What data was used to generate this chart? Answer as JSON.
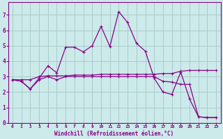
{
  "xlabel": "Windchill (Refroidissement éolien,°C)",
  "background_color": "#cceaea",
  "grid_color": "#aacccc",
  "line_color": "#880088",
  "xlim": [
    -0.5,
    23.5
  ],
  "ylim": [
    0,
    7.8
  ],
  "xticks": [
    0,
    1,
    2,
    3,
    4,
    5,
    6,
    7,
    8,
    9,
    10,
    11,
    12,
    13,
    14,
    15,
    16,
    17,
    18,
    19,
    20,
    21,
    22,
    23
  ],
  "yticks": [
    0,
    1,
    2,
    3,
    4,
    5,
    6,
    7
  ],
  "series": [
    {
      "x": [
        0,
        1,
        2,
        3,
        4,
        5,
        6,
        7,
        8,
        9,
        10,
        11,
        12,
        13,
        14,
        15,
        16,
        17,
        18,
        19,
        20,
        21,
        22,
        23
      ],
      "y": [
        2.8,
        2.8,
        2.8,
        3.0,
        3.05,
        3.05,
        3.05,
        3.1,
        3.1,
        3.1,
        3.15,
        3.15,
        3.15,
        3.15,
        3.15,
        3.15,
        3.15,
        3.2,
        3.2,
        3.35,
        3.4,
        3.4,
        3.4,
        3.4
      ]
    },
    {
      "x": [
        0,
        1,
        2,
        3,
        4,
        5,
        6,
        7,
        8,
        9,
        10,
        11,
        12,
        13,
        14,
        15,
        16,
        17,
        18,
        19,
        20,
        21,
        22,
        23
      ],
      "y": [
        2.8,
        2.7,
        2.2,
        2.8,
        3.0,
        2.8,
        3.0,
        3.0,
        3.0,
        3.0,
        3.0,
        3.0,
        3.0,
        3.0,
        3.0,
        3.0,
        3.0,
        2.7,
        2.65,
        2.5,
        2.5,
        0.4,
        0.35,
        0.35
      ]
    },
    {
      "x": [
        0,
        1,
        2,
        3,
        4,
        5,
        6,
        7,
        8,
        9,
        10,
        11,
        12,
        13,
        14,
        15,
        16,
        17,
        18,
        19,
        20,
        21,
        22,
        23
      ],
      "y": [
        2.8,
        2.7,
        2.2,
        2.9,
        3.7,
        3.25,
        4.9,
        4.9,
        4.6,
        5.0,
        6.25,
        4.95,
        7.2,
        6.5,
        5.15,
        4.65,
        2.9,
        2.0,
        1.85,
        3.3,
        1.55,
        0.4,
        0.35,
        0.35
      ]
    }
  ]
}
